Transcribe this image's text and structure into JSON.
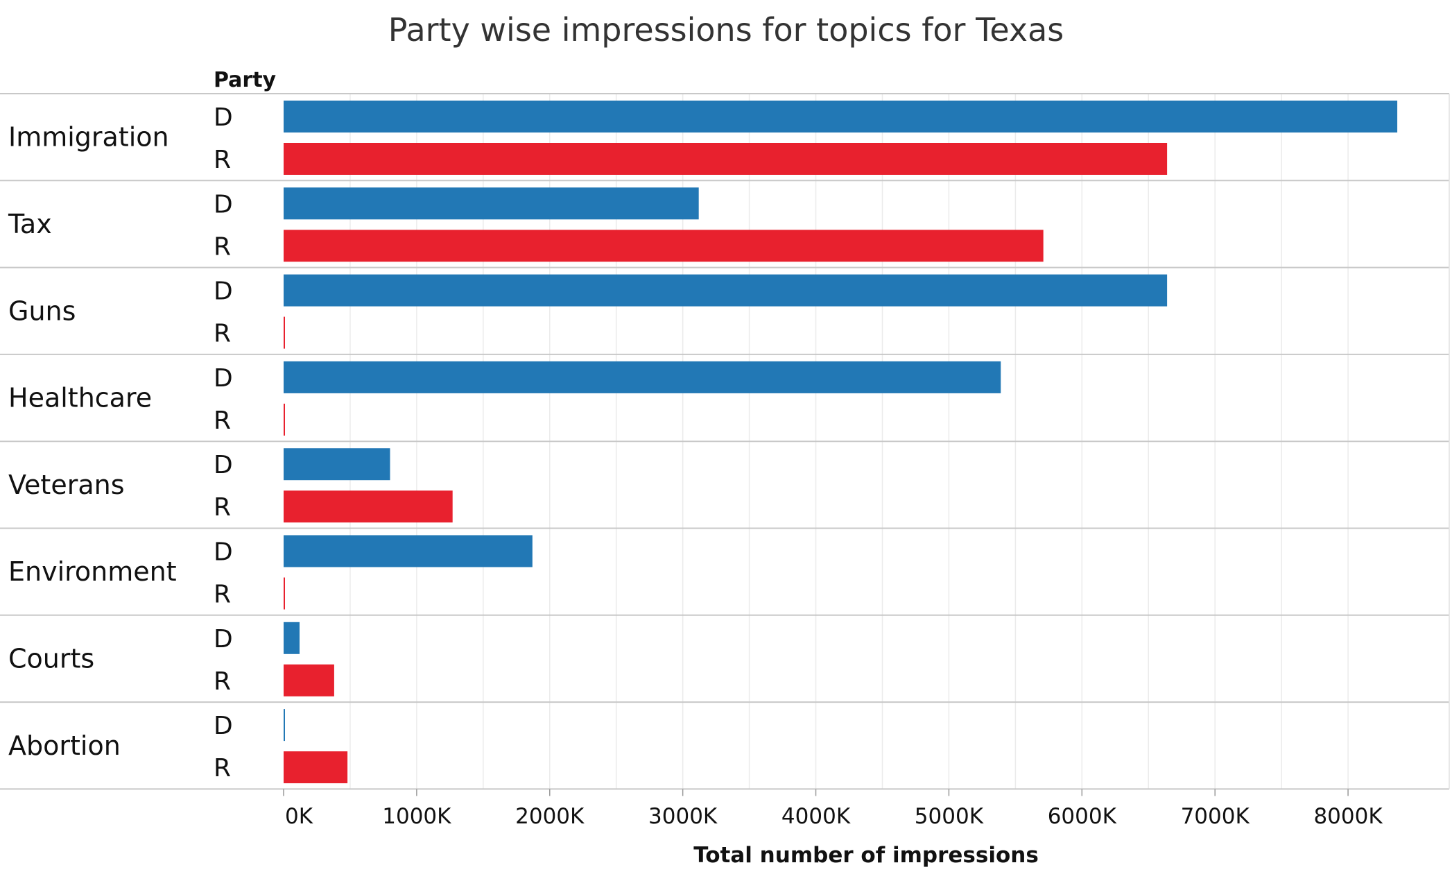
{
  "chart_data": {
    "type": "bar",
    "title": "Party wise impressions for topics for  Texas",
    "orientation": "horizontal",
    "row_header": "Party",
    "xlabel": "Total number of impressions",
    "xlim": [
      -40,
      8750
    ],
    "x_ticks": [
      0,
      1000,
      2000,
      3000,
      4000,
      5000,
      6000,
      7000,
      8000
    ],
    "x_tick_labels": [
      "0K",
      "1000K",
      "2000K",
      "3000K",
      "4000K",
      "5000K",
      "6000K",
      "7000K",
      "8000K"
    ],
    "unit": "K",
    "grid": true,
    "categories": [
      "Immigration",
      "Tax",
      "Guns",
      "Healthcare",
      "Veterans",
      "Environment",
      "Courts",
      "Abortion"
    ],
    "parties": [
      "D",
      "R"
    ],
    "colors": {
      "D": "#2278b5",
      "R": "#e8212e"
    },
    "values": {
      "D": [
        8370,
        3120,
        6640,
        5390,
        800,
        1870,
        120,
        10
      ],
      "R": [
        6640,
        5710,
        10,
        10,
        1270,
        10,
        380,
        480
      ]
    }
  }
}
